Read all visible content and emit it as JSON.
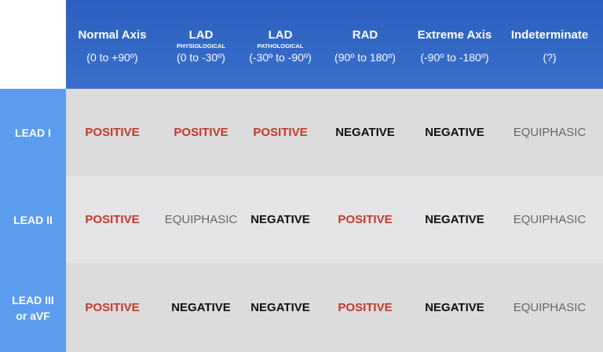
{
  "header": {
    "columns": [
      {
        "title": "Normal Axis",
        "range": "(0 to +90º)"
      },
      {
        "title": "LAD",
        "subtitle": "PHYSIOLOGICAL",
        "range": "(0 to -30º)"
      },
      {
        "title": "LAD",
        "subtitle": "PATHOLOGICAL",
        "range": "(-30º to -90º)"
      },
      {
        "title": "RAD",
        "range": "(90º to 180º)"
      },
      {
        "title": "Extreme Axis",
        "range": "(-90º to -180º)"
      },
      {
        "title": "Indeterminate",
        "range": "(?)"
      }
    ]
  },
  "table": {
    "rows": [
      {
        "label": "LEAD I",
        "cells": [
          {
            "text": "POSITIVE",
            "color": "#c0392b",
            "bold": true
          },
          {
            "text": "POSITIVE",
            "color": "#c0392b",
            "bold": true
          },
          {
            "text": "POSITIVE",
            "color": "#c0392b",
            "bold": true
          },
          {
            "text": "NEGATIVE",
            "color": "#111111",
            "bold": true
          },
          {
            "text": "NEGATIVE",
            "color": "#111111",
            "bold": true
          },
          {
            "text": "EQUIPHASIC",
            "color": "#666666",
            "bold": false
          }
        ]
      },
      {
        "label": "LEAD II",
        "cells": [
          {
            "text": "POSITIVE",
            "color": "#c0392b",
            "bold": true
          },
          {
            "text": "EQUIPHASIC",
            "color": "#666666",
            "bold": false
          },
          {
            "text": "NEGATIVE",
            "color": "#111111",
            "bold": true
          },
          {
            "text": "POSITIVE",
            "color": "#c0392b",
            "bold": true
          },
          {
            "text": "NEGATIVE",
            "color": "#111111",
            "bold": true
          },
          {
            "text": "EQUIPHASIC",
            "color": "#666666",
            "bold": false
          }
        ]
      },
      {
        "label": "LEAD III or aVF",
        "cells": [
          {
            "text": "POSITIVE",
            "color": "#c0392b",
            "bold": true
          },
          {
            "text": "NEGATIVE",
            "color": "#111111",
            "bold": true
          },
          {
            "text": "NEGATIVE",
            "color": "#111111",
            "bold": true
          },
          {
            "text": "POSITIVE",
            "color": "#c0392b",
            "bold": true
          },
          {
            "text": "NEGATIVE",
            "color": "#111111",
            "bold": true
          },
          {
            "text": "EQUIPHASIC",
            "color": "#666666",
            "bold": false
          }
        ]
      }
    ]
  }
}
